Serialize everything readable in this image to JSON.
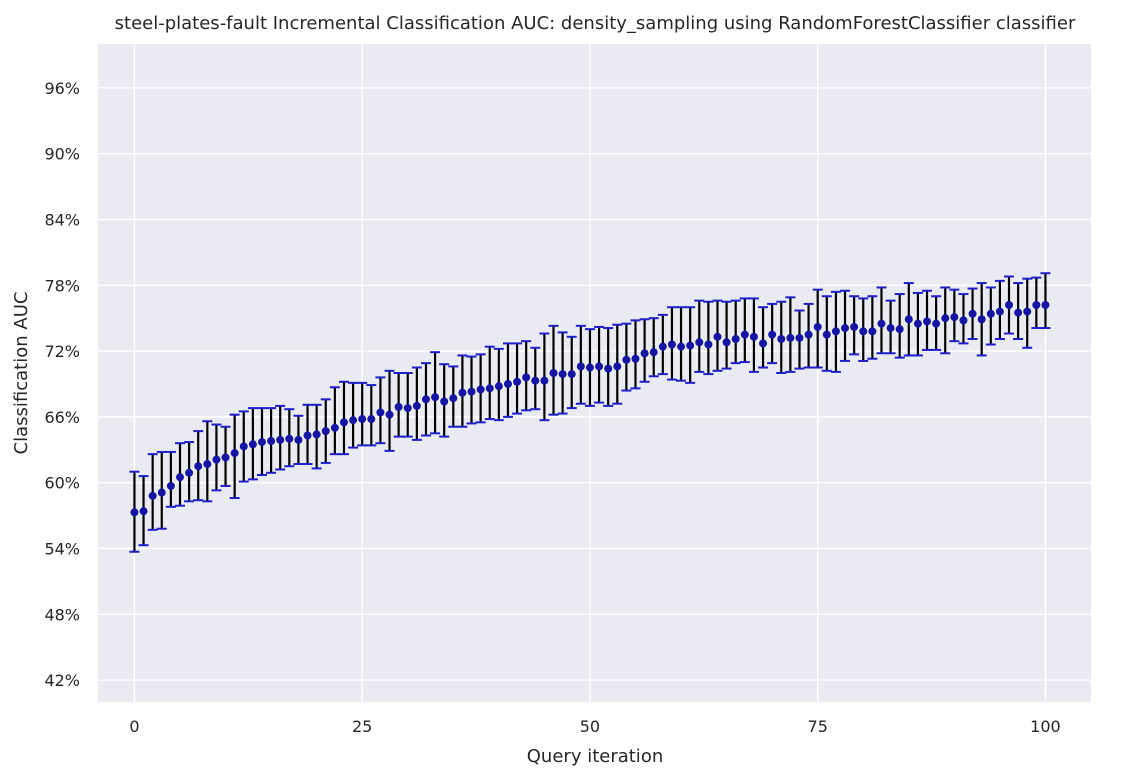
{
  "chart_data": {
    "type": "scatter",
    "title": "steel-plates-fault Incremental Classification AUC: density_sampling using RandomForestClassifier classifier",
    "xlabel": "Query iteration",
    "ylabel": "Classification AUC",
    "xlim": [
      -4,
      105
    ],
    "ylim": [
      0.4,
      1.0
    ],
    "xticks": [
      0,
      25,
      50,
      75,
      100
    ],
    "xtick_labels": [
      "0",
      "25",
      "50",
      "75",
      "100"
    ],
    "yticks": [
      0.42,
      0.48,
      0.54,
      0.6,
      0.66,
      0.72,
      0.78,
      0.84,
      0.9,
      0.96
    ],
    "ytick_labels": [
      "42%",
      "48%",
      "54%",
      "60%",
      "66%",
      "72%",
      "78%",
      "84%",
      "90%",
      "96%"
    ],
    "grid": true,
    "colors": {
      "background": "#eaeaf2",
      "grid": "#ffffff",
      "point": "#1515a0",
      "errorbar": "#000000",
      "cap": "#1f1fc8"
    },
    "series": [
      {
        "x": [
          0,
          1,
          2,
          3,
          4,
          5,
          6,
          7,
          8,
          9,
          10,
          11,
          12,
          13,
          14,
          15,
          16,
          17,
          18,
          19,
          20,
          21,
          22,
          23,
          24,
          25,
          26,
          27,
          28,
          29,
          30,
          31,
          32,
          33,
          34,
          35,
          36,
          37,
          38,
          39,
          40,
          41,
          42,
          43,
          44,
          45,
          46,
          47,
          48,
          49,
          50,
          51,
          52,
          53,
          54,
          55,
          56,
          57,
          58,
          59,
          60,
          61,
          62,
          63,
          64,
          65,
          66,
          67,
          68,
          69,
          70,
          71,
          72,
          73,
          74,
          75,
          76,
          77,
          78,
          79,
          80,
          81,
          82,
          83,
          84,
          85,
          86,
          87,
          88,
          89,
          90,
          91,
          92,
          93,
          94,
          95,
          96,
          97,
          98,
          99,
          100
        ],
        "y": [
          0.573,
          0.574,
          0.588,
          0.591,
          0.597,
          0.605,
          0.609,
          0.615,
          0.617,
          0.621,
          0.623,
          0.627,
          0.633,
          0.635,
          0.637,
          0.638,
          0.639,
          0.64,
          0.639,
          0.643,
          0.644,
          0.647,
          0.65,
          0.655,
          0.657,
          0.658,
          0.658,
          0.664,
          0.662,
          0.669,
          0.668,
          0.67,
          0.676,
          0.678,
          0.674,
          0.677,
          0.682,
          0.683,
          0.685,
          0.686,
          0.688,
          0.69,
          0.692,
          0.696,
          0.693,
          0.693,
          0.7,
          0.699,
          0.699,
          0.706,
          0.705,
          0.706,
          0.704,
          0.706,
          0.712,
          0.713,
          0.718,
          0.719,
          0.724,
          0.726,
          0.724,
          0.725,
          0.728,
          0.726,
          0.733,
          0.728,
          0.731,
          0.735,
          0.733,
          0.727,
          0.735,
          0.731,
          0.732,
          0.732,
          0.735,
          0.742,
          0.735,
          0.738,
          0.741,
          0.742,
          0.738,
          0.738,
          0.745,
          0.741,
          0.74,
          0.749,
          0.745,
          0.747,
          0.745,
          0.75,
          0.751,
          0.748,
          0.754,
          0.749,
          0.754,
          0.756,
          0.762,
          0.755,
          0.756,
          0.762,
          0.762
        ],
        "err_low": [
          0.537,
          0.543,
          0.557,
          0.558,
          0.578,
          0.579,
          0.583,
          0.584,
          0.583,
          0.593,
          0.597,
          0.586,
          0.601,
          0.603,
          0.607,
          0.609,
          0.612,
          0.615,
          0.617,
          0.617,
          0.613,
          0.618,
          0.626,
          0.626,
          0.632,
          0.634,
          0.634,
          0.636,
          0.629,
          0.642,
          0.642,
          0.639,
          0.643,
          0.645,
          0.642,
          0.651,
          0.651,
          0.654,
          0.655,
          0.658,
          0.657,
          0.66,
          0.663,
          0.666,
          0.667,
          0.657,
          0.662,
          0.663,
          0.668,
          0.672,
          0.67,
          0.673,
          0.67,
          0.672,
          0.684,
          0.686,
          0.692,
          0.697,
          0.699,
          0.694,
          0.693,
          0.691,
          0.701,
          0.699,
          0.702,
          0.704,
          0.709,
          0.71,
          0.701,
          0.705,
          0.709,
          0.7,
          0.701,
          0.704,
          0.705,
          0.705,
          0.702,
          0.701,
          0.711,
          0.717,
          0.711,
          0.713,
          0.718,
          0.718,
          0.714,
          0.716,
          0.716,
          0.721,
          0.721,
          0.718,
          0.729,
          0.727,
          0.731,
          0.716,
          0.726,
          0.731,
          0.736,
          0.731,
          0.723,
          0.741,
          0.741
        ],
        "err_high": [
          0.61,
          0.606,
          0.626,
          0.628,
          0.628,
          0.636,
          0.637,
          0.647,
          0.656,
          0.653,
          0.651,
          0.662,
          0.665,
          0.668,
          0.668,
          0.668,
          0.67,
          0.667,
          0.661,
          0.671,
          0.671,
          0.676,
          0.687,
          0.692,
          0.691,
          0.691,
          0.689,
          0.696,
          0.702,
          0.7,
          0.7,
          0.705,
          0.709,
          0.719,
          0.708,
          0.706,
          0.716,
          0.715,
          0.717,
          0.724,
          0.722,
          0.727,
          0.727,
          0.729,
          0.723,
          0.736,
          0.743,
          0.737,
          0.733,
          0.743,
          0.74,
          0.742,
          0.741,
          0.744,
          0.745,
          0.748,
          0.749,
          0.75,
          0.753,
          0.76,
          0.76,
          0.76,
          0.766,
          0.765,
          0.766,
          0.765,
          0.766,
          0.768,
          0.768,
          0.76,
          0.763,
          0.765,
          0.769,
          0.757,
          0.763,
          0.776,
          0.77,
          0.774,
          0.775,
          0.77,
          0.768,
          0.77,
          0.778,
          0.766,
          0.772,
          0.782,
          0.773,
          0.775,
          0.77,
          0.778,
          0.776,
          0.772,
          0.777,
          0.782,
          0.778,
          0.784,
          0.788,
          0.782,
          0.786,
          0.787,
          0.791
        ]
      }
    ]
  }
}
